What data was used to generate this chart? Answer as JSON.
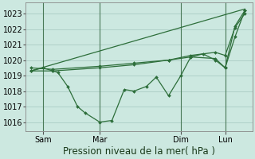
{
  "bg_color": "#cce8e0",
  "grid_color": "#aaccc4",
  "line_color": "#2d6e3a",
  "vline_color": "#4a7a58",
  "title": "Pression niveau de la mer( hPa )",
  "ylabel_ticks": [
    1016,
    1017,
    1018,
    1019,
    1020,
    1021,
    1022,
    1023
  ],
  "xlim": [
    -0.2,
    9.0
  ],
  "ylim": [
    1015.4,
    1023.7
  ],
  "xtick_labels": [
    "Sam",
    "Mar",
    "Dim",
    "Lun"
  ],
  "vline_positions": [
    0.5,
    2.8,
    6.1,
    7.9
  ],
  "line1_x": [
    0.0,
    0.5,
    0.9,
    1.1,
    1.5,
    1.9,
    2.2,
    2.8,
    3.3,
    3.8,
    4.2,
    4.7,
    5.1,
    5.6,
    6.1,
    6.5,
    7.0,
    7.5,
    7.9,
    8.3,
    8.7
  ],
  "line1_y": [
    1019.3,
    1019.5,
    1019.3,
    1019.2,
    1018.3,
    1017.0,
    1016.6,
    1016.0,
    1016.1,
    1018.1,
    1018.0,
    1018.3,
    1018.9,
    1017.7,
    1019.0,
    1020.2,
    1020.4,
    1020.0,
    1019.5,
    1021.5,
    1023.2
  ],
  "line2_x": [
    0.0,
    0.9,
    2.8,
    4.2,
    5.6,
    6.5,
    7.5,
    7.9,
    8.3,
    8.7
  ],
  "line2_y": [
    1019.3,
    1019.3,
    1019.5,
    1019.7,
    1020.0,
    1020.2,
    1020.1,
    1019.5,
    1022.2,
    1023.2
  ],
  "line3_x": [
    0.0,
    0.9,
    2.8,
    4.2,
    5.6,
    6.5,
    7.5,
    7.9,
    8.3,
    8.7
  ],
  "line3_y": [
    1019.5,
    1019.4,
    1019.6,
    1019.8,
    1020.0,
    1020.3,
    1020.5,
    1020.3,
    1022.1,
    1023.0
  ],
  "line4_x": [
    0.0,
    8.7
  ],
  "line4_y": [
    1019.3,
    1023.3
  ],
  "title_fontsize": 8.5,
  "tick_fontsize": 7
}
